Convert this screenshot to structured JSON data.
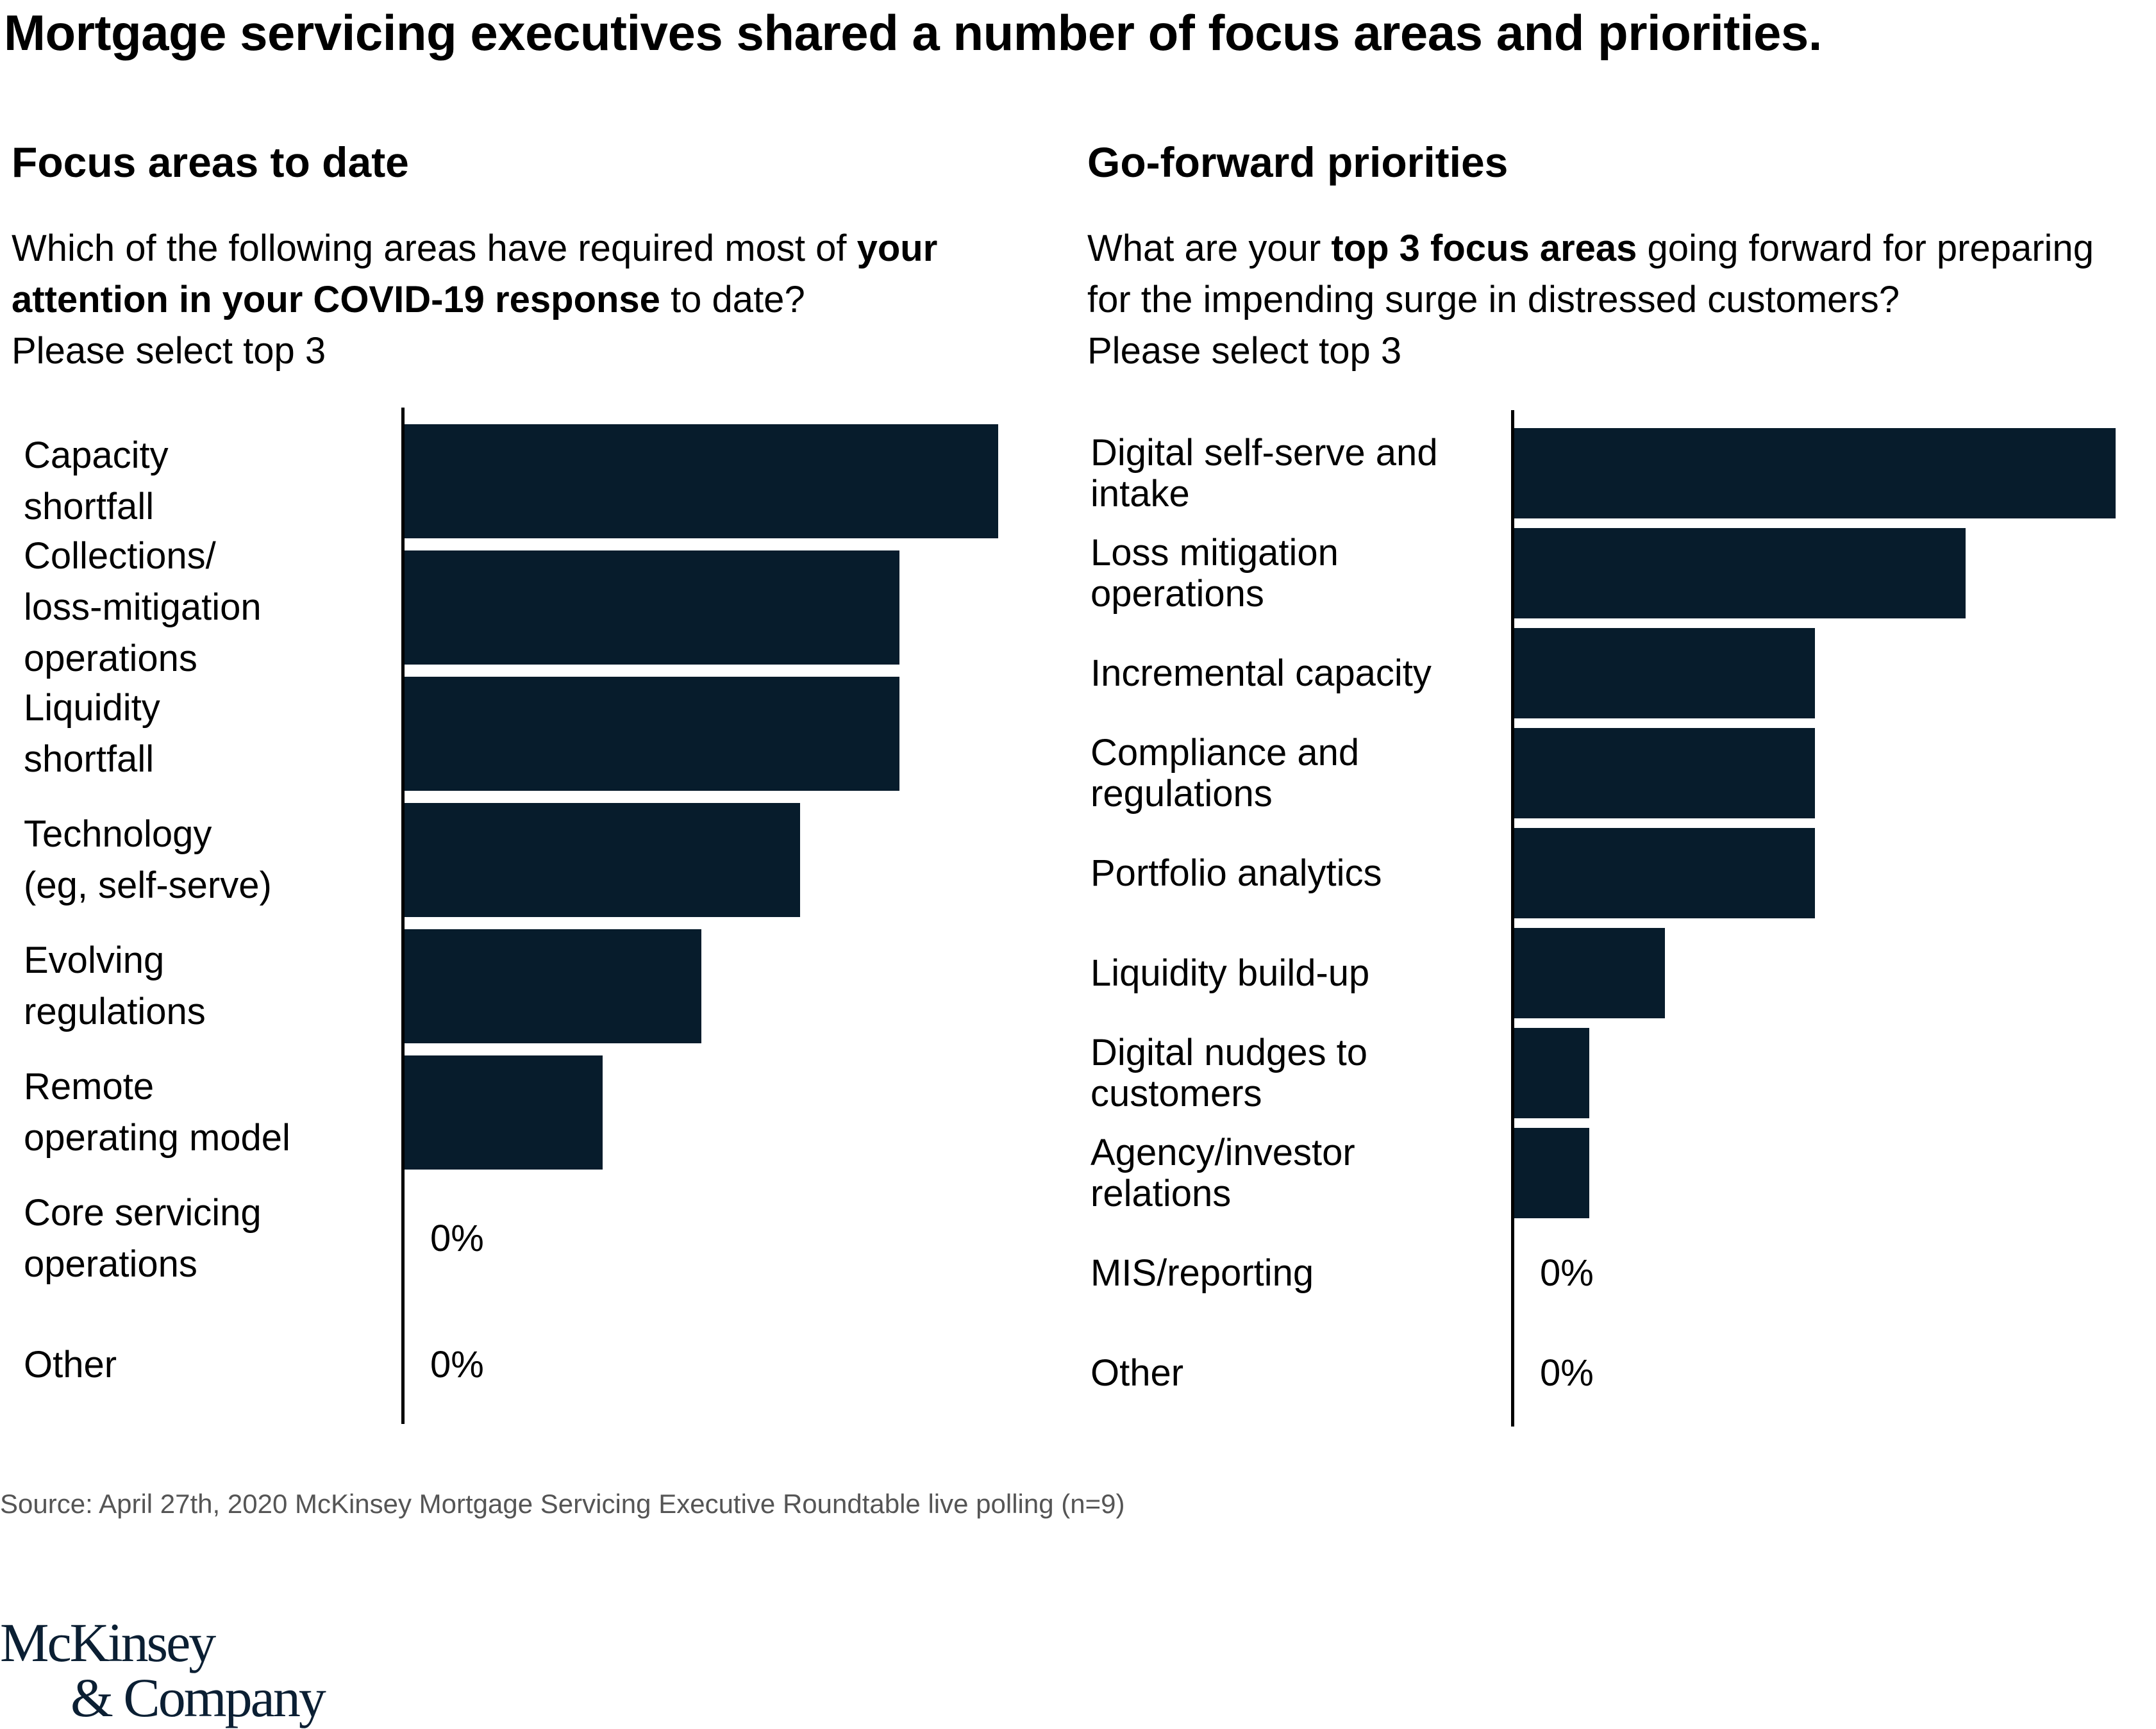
{
  "title": "Mortgage servicing executives shared a number of focus areas and priorities.",
  "left": {
    "heading": "Focus areas to date",
    "question_parts": [
      {
        "text": "Which of the following areas have required most of ",
        "bold": false
      },
      {
        "text": "your attention in your COVID-19 response",
        "bold": true
      },
      {
        "text": " to date?",
        "bold": false
      }
    ],
    "question_line1_plain": "Which of the following areas have required most of ",
    "question_line1_bold": "your",
    "question_line2_bold": "attention in your COVID-19 response",
    "question_line2_plain": " to date?",
    "instruction": "Please select top 3"
  },
  "right": {
    "heading": "Go-forward priorities",
    "question_line1_plain_a": "What are your ",
    "question_line1_bold": "top 3 focus areas",
    "question_line1_plain_b": " going forward for preparing",
    "question_line2_plain": "for the impending surge in distressed customers?",
    "instruction": "Please select top 3"
  },
  "chart_data": [
    {
      "type": "bar",
      "orientation": "horizontal",
      "title": "Focus areas to date",
      "value_unit": "relative number of responses (n=9, top 3 selections)",
      "categories": [
        "Capacity\nshortfall",
        "Collections/\nloss-mitigation\noperations",
        "Liquidity\nshortfall",
        "Technology\n(eg, self-serve)",
        "Evolving\nregulations",
        "Remote\noperating model",
        "Core servicing\noperations",
        "Other"
      ],
      "values": [
        6,
        5,
        5,
        4,
        3,
        2,
        0,
        0
      ],
      "data_labels": [
        "",
        "",
        "",
        "",
        "",
        "",
        "0%",
        "0%"
      ],
      "xlim": [
        0,
        6
      ],
      "grid": false,
      "color": "#071c2c"
    },
    {
      "type": "bar",
      "orientation": "horizontal",
      "title": "Go-forward priorities",
      "value_unit": "relative number of responses (n=9, top 3 selections)",
      "categories": [
        "Digital self-serve and\nintake",
        "Loss mitigation\noperations",
        "Incremental capacity",
        "Compliance and\nregulations",
        "Portfolio analytics",
        "Liquidity build-up",
        "Digital nudges to\ncustomers",
        "Agency/investor\nrelations",
        "MIS/reporting",
        "Other"
      ],
      "values": [
        8,
        6,
        4,
        4,
        4,
        2,
        1,
        1,
        0,
        0
      ],
      "data_labels": [
        "",
        "",
        "",
        "",
        "",
        "",
        "",
        "",
        "0%",
        "0%"
      ],
      "xlim": [
        0,
        8
      ],
      "grid": false,
      "color": "#071c2c"
    }
  ],
  "source": "Source:  April 27th, 2020 McKinsey Mortgage Servicing Executive Roundtable live polling (n=9)",
  "logo": {
    "line1": "McKinsey",
    "line2": "& Company"
  }
}
